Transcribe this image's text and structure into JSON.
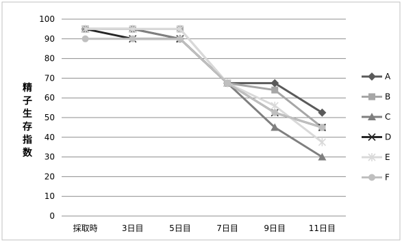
{
  "chart_data": {
    "type": "line",
    "title": "",
    "xlabel": "",
    "ylabel": "精子生存指数",
    "categories": [
      "採取時",
      "3日目",
      "5日目",
      "7日目",
      "9日目",
      "11日目"
    ],
    "ylim": [
      0,
      100
    ],
    "yticks": [
      0,
      10,
      20,
      30,
      40,
      50,
      60,
      70,
      80,
      90,
      100
    ],
    "grid": true,
    "legend_position": "right",
    "series": [
      {
        "name": "A",
        "marker": "diamond",
        "color": "#5a5a5a",
        "values": [
          95,
          95,
          90,
          67.5,
          67.5,
          52.5
        ]
      },
      {
        "name": "B",
        "marker": "square",
        "color": "#a6a6a6",
        "values": [
          95,
          95,
          95,
          67.5,
          64,
          45
        ]
      },
      {
        "name": "C",
        "marker": "triangle",
        "color": "#7f7f7f",
        "values": [
          95,
          95,
          90,
          67.5,
          45,
          30
        ]
      },
      {
        "name": "D",
        "marker": "x",
        "color": "#262626",
        "values": [
          95,
          90,
          90,
          67.5,
          52.5,
          45
        ]
      },
      {
        "name": "E",
        "marker": "star",
        "color": "#d9d9d9",
        "values": [
          95,
          95,
          95,
          67.5,
          56,
          37.5
        ]
      },
      {
        "name": "F",
        "marker": "circle",
        "color": "#bfbfbf",
        "values": [
          90,
          90,
          90,
          67.5,
          52.5,
          45
        ]
      }
    ]
  }
}
